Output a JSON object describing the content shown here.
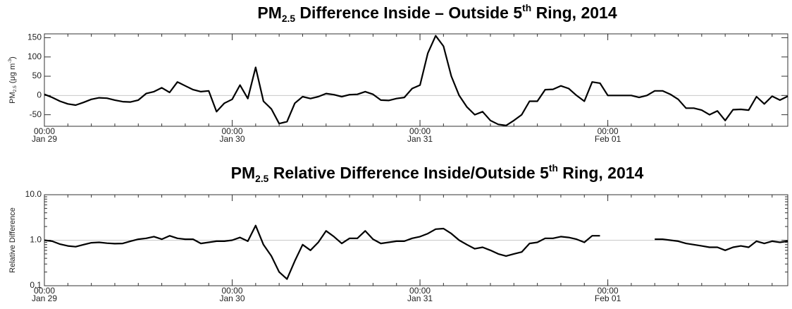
{
  "chart_data": [
    {
      "type": "line",
      "title": [
        "PM",
        "2.5",
        " Difference Inside – Outside 5",
        "th",
        " Ring, 2014"
      ],
      "ylabel": [
        "PM",
        "2.5",
        " (μg m",
        "-3",
        ")"
      ],
      "x": [
        0,
        1,
        2,
        3,
        4,
        5,
        6,
        7,
        8,
        9,
        10,
        11,
        12,
        13,
        14,
        15,
        16,
        17,
        18,
        19,
        20,
        21,
        22,
        23,
        24,
        25,
        26,
        27,
        28,
        29,
        30,
        31,
        32,
        33,
        34,
        35,
        36,
        37,
        38,
        39,
        40,
        41,
        42,
        43,
        44,
        45,
        46,
        47,
        48,
        49,
        50,
        51,
        52,
        53,
        54,
        55,
        56,
        57,
        58,
        59,
        60,
        61,
        62,
        63,
        64,
        65,
        66,
        67,
        68,
        69,
        70,
        71,
        72,
        73,
        74,
        75,
        76,
        77,
        78,
        79,
        80,
        81,
        82,
        83,
        84,
        85,
        86,
        87,
        88,
        89,
        90,
        91,
        92,
        93,
        94,
        95
      ],
      "values": [
        3,
        -5,
        -15,
        -22,
        -25,
        -18,
        -10,
        -6,
        -7,
        -12,
        -16,
        -17,
        -12,
        5,
        10,
        20,
        8,
        35,
        25,
        15,
        10,
        12,
        -42,
        -20,
        -10,
        27,
        -8,
        73,
        -15,
        -35,
        -73,
        -68,
        -20,
        -3,
        -8,
        -3,
        5,
        2,
        -3,
        2,
        3,
        10,
        3,
        -12,
        -13,
        -8,
        -5,
        18,
        27,
        110,
        155,
        128,
        50,
        0,
        -30,
        -50,
        -42,
        -65,
        -75,
        -78,
        -65,
        -50,
        -15,
        -15,
        15,
        16,
        25,
        18,
        0,
        -15,
        35,
        32,
        0,
        0,
        0,
        0,
        -5,
        0,
        12,
        12,
        3,
        -10,
        -33,
        -33,
        -38,
        -50,
        -40,
        -65,
        -37,
        -36,
        -38,
        -3,
        -22,
        -2,
        -12,
        -2
      ],
      "color": "#000000",
      "xlim": [
        0,
        95
      ],
      "xticks": [
        {
          "value": 0,
          "label": "00:00"
        },
        {
          "value": 24,
          "label": "00:00"
        },
        {
          "value": 48,
          "label": "00:00"
        },
        {
          "value": 72,
          "label": "00:00"
        }
      ],
      "xtick_dates": [
        "Jan 29",
        "Jan 30",
        "Jan 31",
        "Feb 01"
      ],
      "ylim": [
        -80,
        160
      ],
      "yticks": [
        -50,
        0,
        50,
        100,
        150
      ],
      "reference_line": 0,
      "log_y": false
    },
    {
      "type": "line",
      "title": [
        "PM",
        "2.5",
        " Relative Difference Inside/Outside 5",
        "th",
        " Ring, 2014"
      ],
      "ylabel": [
        "Relative Difference"
      ],
      "x": [
        0,
        1,
        2,
        3,
        4,
        5,
        6,
        7,
        8,
        9,
        10,
        11,
        12,
        13,
        14,
        15,
        16,
        17,
        18,
        19,
        20,
        21,
        22,
        23,
        24,
        25,
        26,
        27,
        28,
        29,
        30,
        31,
        32,
        33,
        34,
        35,
        36,
        37,
        38,
        39,
        40,
        41,
        42,
        43,
        44,
        45,
        46,
        47,
        48,
        49,
        50,
        51,
        52,
        53,
        54,
        55,
        56,
        57,
        58,
        59,
        60,
        61,
        62,
        63,
        64,
        65,
        66,
        67,
        68,
        69,
        70,
        71,
        72,
        73,
        74,
        75,
        76,
        77,
        78,
        79,
        80,
        81,
        82,
        83,
        84,
        85,
        86,
        87,
        88,
        89,
        90,
        91,
        92,
        93,
        94,
        95
      ],
      "values": [
        1.0,
        0.95,
        0.82,
        0.75,
        0.72,
        0.8,
        0.88,
        0.9,
        0.86,
        0.84,
        0.85,
        0.95,
        1.05,
        1.1,
        1.2,
        1.05,
        1.25,
        1.1,
        1.05,
        1.05,
        0.85,
        0.9,
        0.95,
        0.95,
        1.0,
        1.15,
        0.95,
        2.1,
        0.8,
        0.45,
        0.2,
        0.14,
        0.35,
        0.8,
        0.6,
        0.9,
        1.6,
        1.2,
        0.85,
        1.1,
        1.1,
        1.6,
        1.05,
        0.85,
        0.9,
        0.95,
        0.95,
        1.1,
        1.2,
        1.4,
        1.75,
        1.8,
        1.4,
        1.0,
        0.8,
        0.65,
        0.7,
        0.6,
        0.5,
        0.45,
        0.5,
        0.55,
        0.85,
        0.9,
        1.1,
        1.1,
        1.2,
        1.15,
        1.05,
        0.9,
        1.25,
        1.25,
        null,
        null,
        null,
        null,
        null,
        null,
        1.05,
        1.05,
        1.0,
        0.95,
        0.85,
        0.8,
        0.75,
        0.7,
        0.7,
        0.6,
        0.7,
        0.75,
        0.7,
        0.95,
        0.85,
        0.95,
        0.9,
        0.95
      ],
      "color": "#000000",
      "xlim": [
        0,
        95
      ],
      "xticks": [
        {
          "value": 0,
          "label": "00:00"
        },
        {
          "value": 24,
          "label": "00:00"
        },
        {
          "value": 48,
          "label": "00:00"
        },
        {
          "value": 72,
          "label": "00:00"
        }
      ],
      "xtick_dates": [
        "Jan 29",
        "Jan 30",
        "Jan 31",
        "Feb 01"
      ],
      "ylim": [
        0.1,
        10
      ],
      "yticks": [
        {
          "value": 0.1,
          "label": "0.1"
        },
        {
          "value": 1,
          "label": "1.0"
        },
        {
          "value": 10,
          "label": "10.0"
        }
      ],
      "reference_line": 1,
      "log_y": true
    }
  ]
}
